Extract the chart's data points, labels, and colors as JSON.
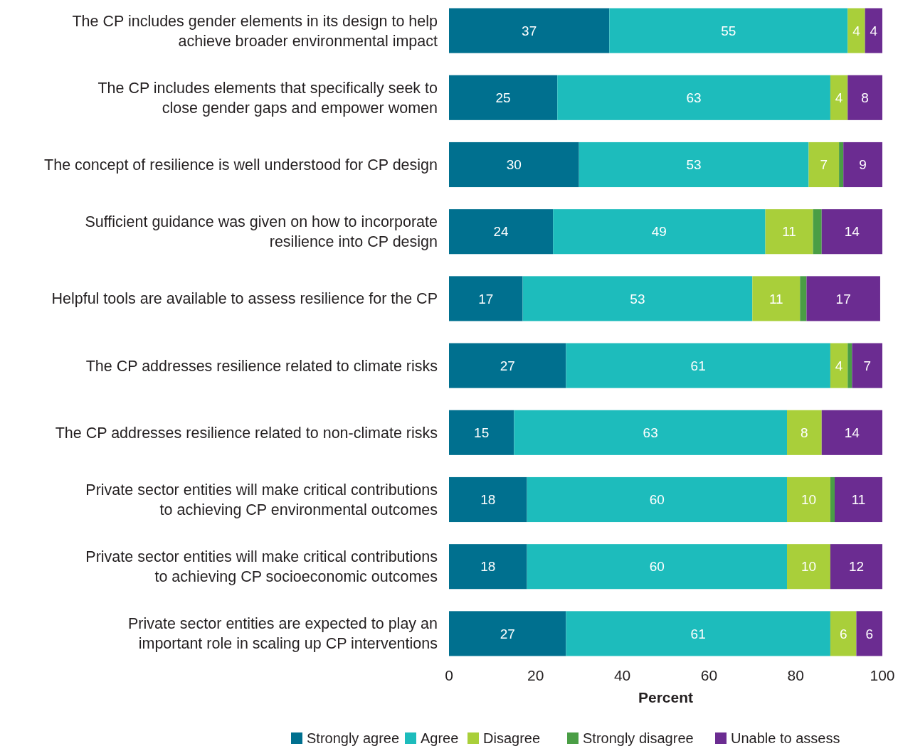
{
  "chart_data": {
    "type": "bar",
    "orientation": "horizontal",
    "stacked": true,
    "xlabel": "Percent",
    "xlim": [
      0,
      100
    ],
    "xticks": [
      0,
      20,
      40,
      60,
      80,
      100
    ],
    "legend": "bottom",
    "grid": false,
    "categories": [
      "The CP includes gender elements in its design to help\nachieve broader environmental impact",
      "The CP includes elements that specifically seek to\nclose gender gaps and empower women",
      "The concept of resilience is well understood for CP design",
      "Sufficient guidance was given on how to incorporate\nresilience into CP design",
      "Helpful tools are available to assess resilience for the CP",
      "The CP addresses resilience related to climate risks",
      "The CP addresses resilience related to non-climate risks",
      "Private sector entities will make critical contributions\nto achieving CP environmental outcomes",
      "Private sector entities will make critical contributions\nto achieving CP socioeconomic outcomes",
      "Private sector entities are expected to play an\nimportant role in scaling up CP interventions"
    ],
    "series": [
      {
        "name": "Strongly agree",
        "color": "#00708f",
        "values": [
          37,
          25,
          30,
          24,
          17,
          27,
          15,
          18,
          18,
          27
        ],
        "value_labels": [
          "37",
          "25",
          "30",
          "24",
          "17",
          "27",
          "15",
          "18",
          "18",
          "27"
        ]
      },
      {
        "name": "Agree",
        "color": "#1dbcbc",
        "values": [
          55,
          63,
          53,
          49,
          53,
          61,
          63,
          60,
          60,
          61
        ],
        "value_labels": [
          "55",
          "63",
          "53",
          "49",
          "53",
          "61",
          "63",
          "60",
          "60",
          "61"
        ]
      },
      {
        "name": "Disagree",
        "color": "#a9cf3a",
        "values": [
          4,
          4,
          7,
          11,
          11,
          4,
          8,
          10,
          10,
          6
        ],
        "value_labels": [
          "4",
          "4",
          "7",
          "11",
          "11",
          "4",
          "8",
          "10",
          "10",
          "6"
        ]
      },
      {
        "name": "Strongly disagree",
        "color": "#4a9e45",
        "values": [
          0,
          0,
          1,
          2,
          1.5,
          1,
          0,
          1,
          0,
          0
        ]
      },
      {
        "name": "Unable to assess",
        "color": "#6b2c91",
        "values": [
          4,
          8,
          9,
          14,
          17,
          7,
          14,
          11,
          12,
          6
        ],
        "value_labels": [
          "4",
          "8",
          "9",
          "14",
          "17",
          "7",
          "14",
          "11",
          "12",
          "6"
        ]
      }
    ]
  }
}
